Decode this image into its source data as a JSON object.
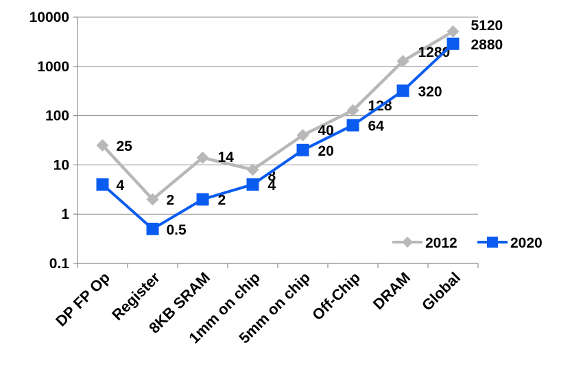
{
  "chart_data": {
    "type": "line",
    "y_scale": "log",
    "ylim": [
      0.1,
      10000
    ],
    "y_ticks": [
      "0.1",
      "1",
      "10",
      "100",
      "1000",
      "10000"
    ],
    "grid": "horizontal",
    "legend_position": "bottom-right",
    "categories": [
      "DP FP Op",
      "Register",
      "8KB SRAM",
      "1mm on chip",
      "5mm on chip",
      "Off-Chip",
      "DRAM",
      "Global"
    ],
    "series": [
      {
        "name": "2012",
        "values": [
          25,
          2,
          14,
          8,
          40,
          128,
          1280,
          5120
        ],
        "labels": [
          "25",
          "2",
          "14",
          "8",
          "40",
          "128",
          "1280",
          "5120"
        ],
        "color": "#b8b8b8",
        "marker": "diamond"
      },
      {
        "name": "2020",
        "values": [
          4,
          0.5,
          2,
          4,
          20,
          64,
          320,
          2880
        ],
        "labels": [
          "4",
          "0.5",
          "2",
          "4",
          "20",
          "64",
          "320",
          "2880"
        ],
        "color": "#0a5cf0",
        "marker": "square"
      }
    ]
  }
}
